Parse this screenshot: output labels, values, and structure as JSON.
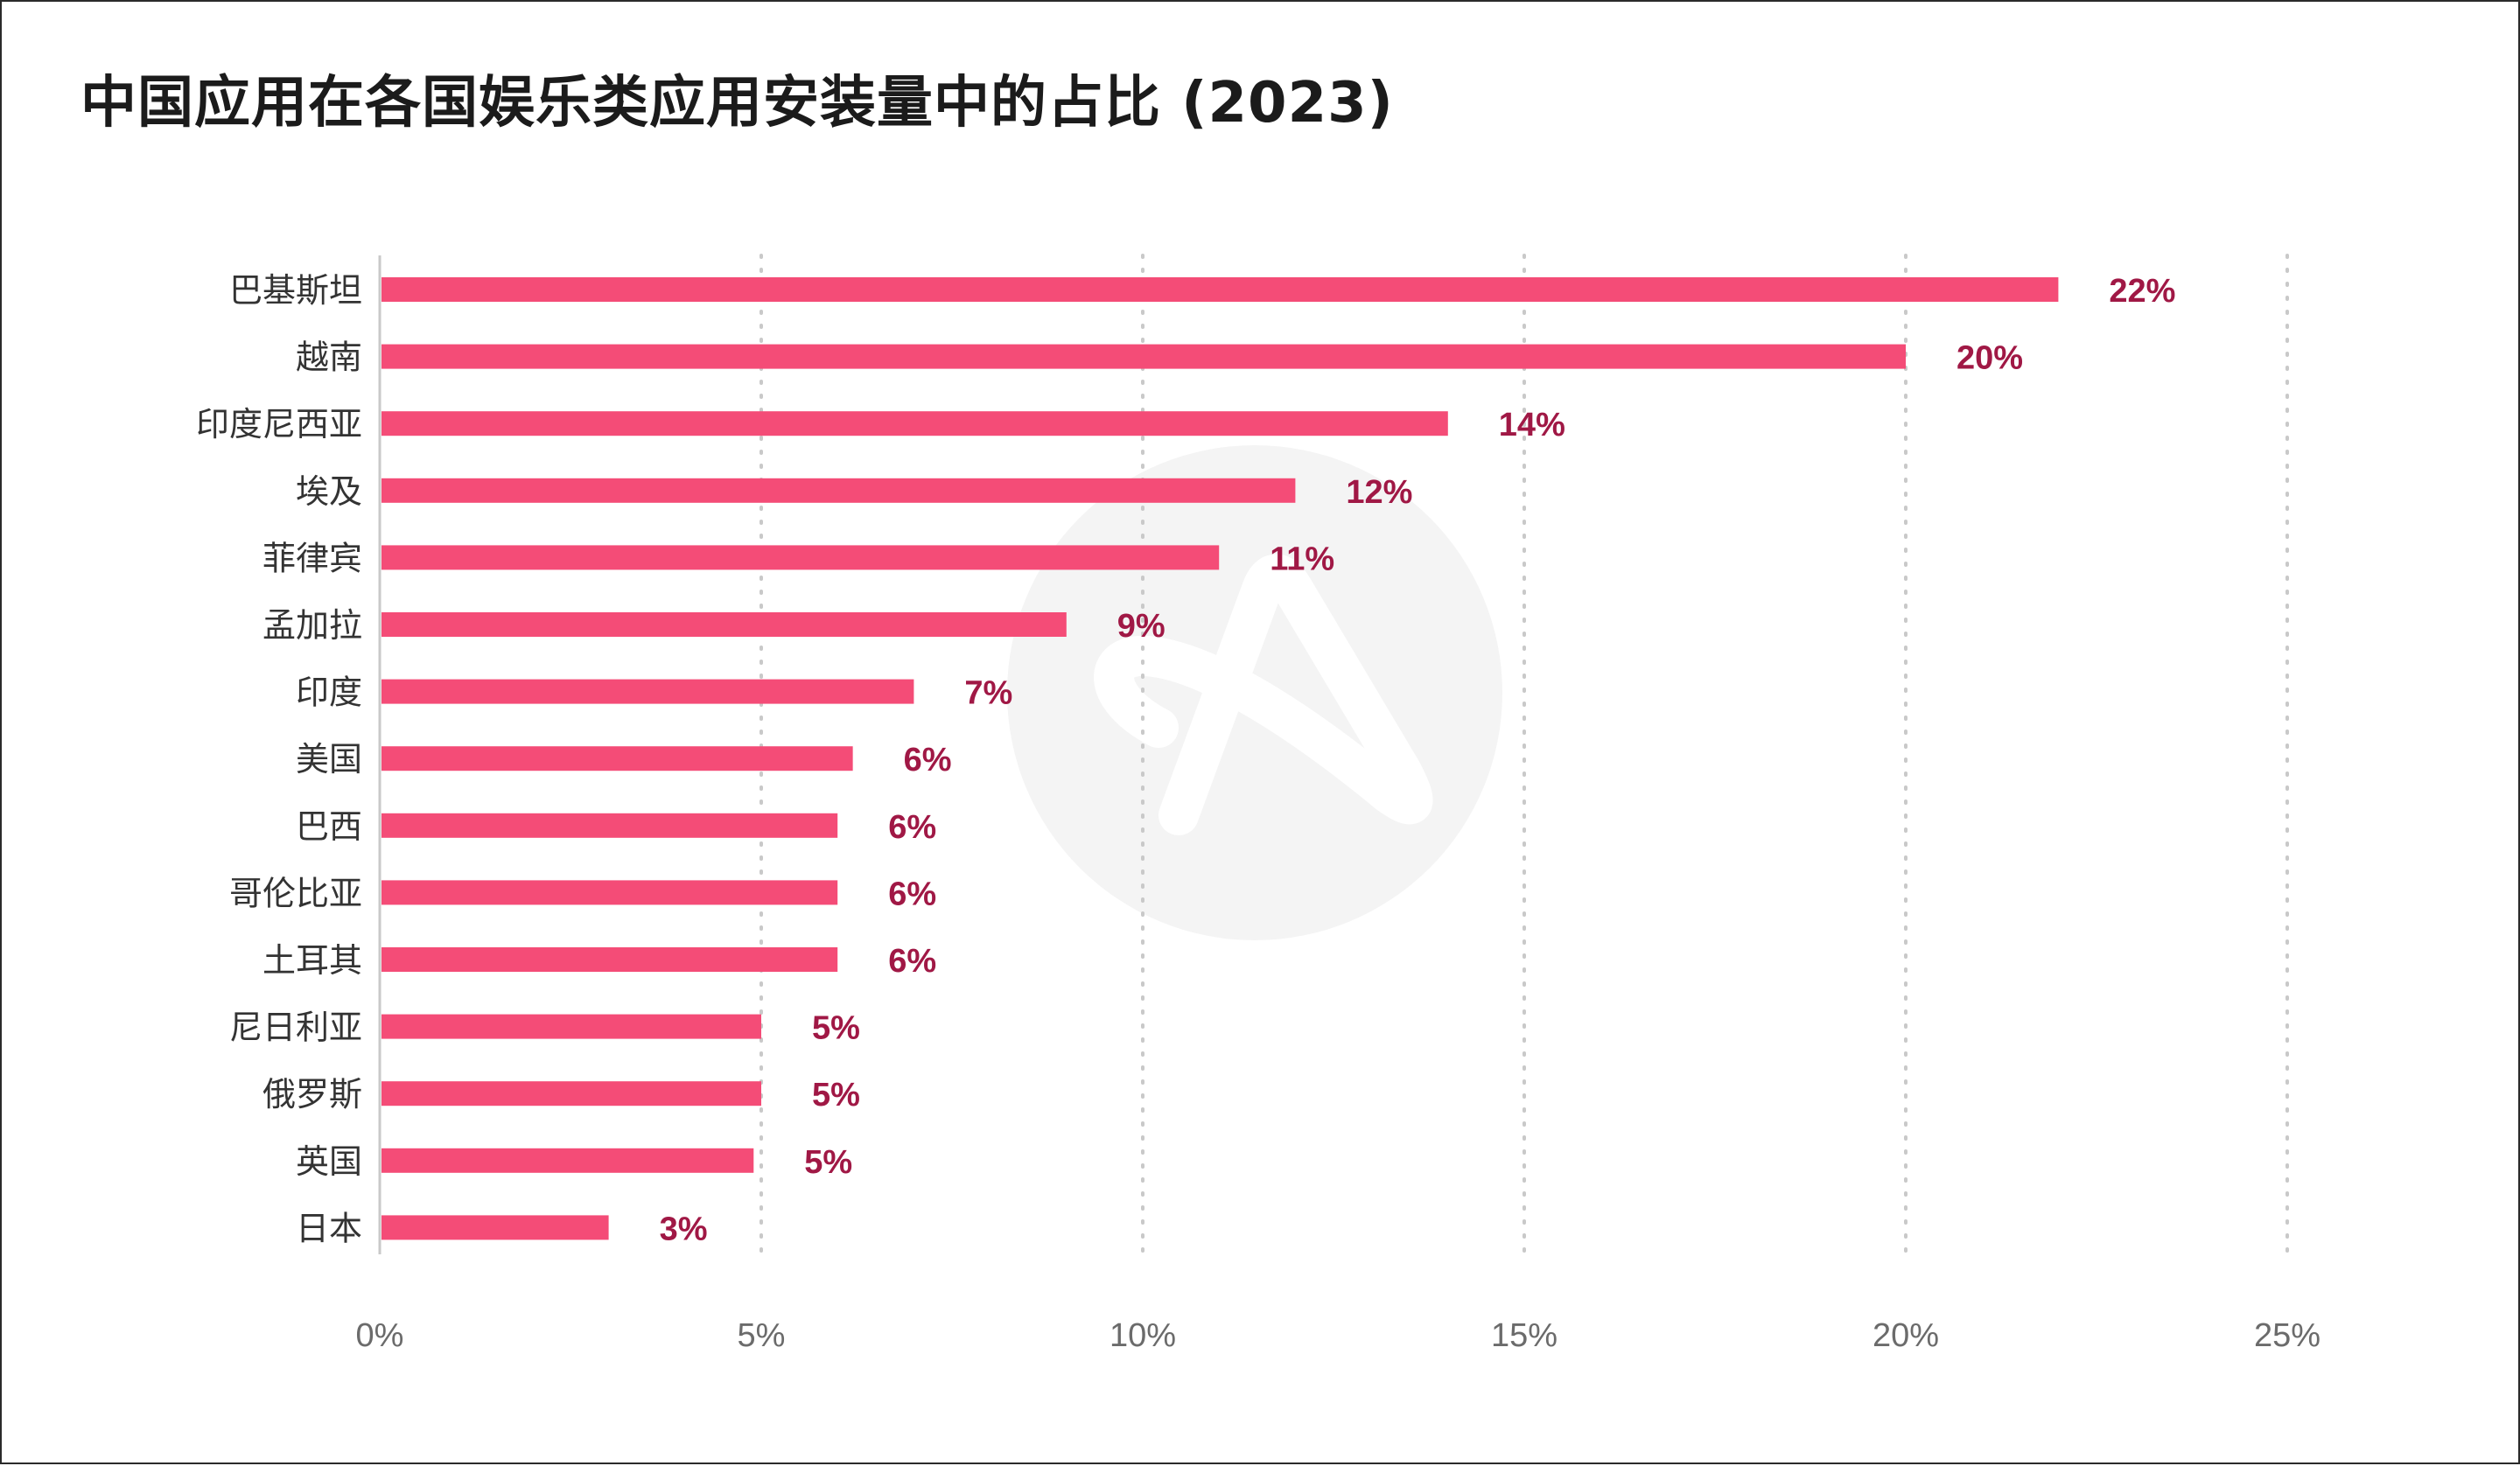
{
  "title": "中国应用在各国娱乐类应用安装量中的占比 (2023)",
  "colors": {
    "bar": "#f44c77",
    "value_label": "#a01845",
    "category_label": "#333333",
    "tick_label": "#6b6b6b",
    "grid": "#c9c9c9",
    "axis": "#c9c9c9",
    "watermark": "#f4f4f4"
  },
  "chart_data": {
    "type": "bar",
    "orientation": "horizontal",
    "title": "中国应用在各国娱乐类应用安装量中的占比 (2023)",
    "categories": [
      "巴基斯坦",
      "越南",
      "印度尼西亚",
      "埃及",
      "菲律宾",
      "孟加拉",
      "印度",
      "美国",
      "巴西",
      "哥伦比亚",
      "土耳其",
      "尼日利亚",
      "俄罗斯",
      "英国",
      "日本"
    ],
    "values": [
      22,
      20,
      14,
      12,
      11,
      9,
      7,
      6.2,
      6,
      6,
      6,
      5,
      5,
      4.9,
      3
    ],
    "value_labels": [
      "22%",
      "20%",
      "14%",
      "12%",
      "11%",
      "9%",
      "7%",
      "6%",
      "6%",
      "6%",
      "6%",
      "5%",
      "5%",
      "5%",
      "3%"
    ],
    "xlim": [
      0,
      25
    ],
    "xticks": [
      0,
      5,
      10,
      15,
      20,
      25
    ],
    "xtick_labels": [
      "0%",
      "5%",
      "10%",
      "15%",
      "20%",
      "25%"
    ],
    "xlabel": "",
    "ylabel": "",
    "grid": "vertical dotted",
    "legend": "none"
  }
}
